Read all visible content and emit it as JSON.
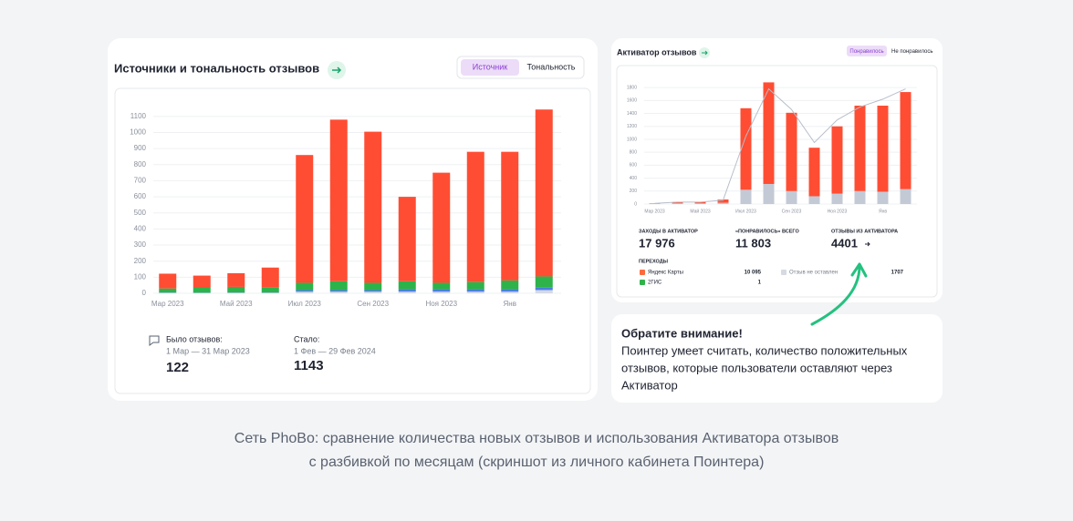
{
  "left_card": {
    "title": "Источники и тональность отзывов",
    "tabs": [
      "Источник",
      "Тональность"
    ],
    "before": {
      "label": "Было отзывов:",
      "period": "1 Мар — 31 Мар 2023",
      "value": "122"
    },
    "after": {
      "label": "Стало:",
      "period": "1 Фев — 29 Фев 2024",
      "value": "1143"
    }
  },
  "right_card": {
    "title": "Активатор отзывов",
    "tabs": [
      "Понравилось",
      "Не понравилось"
    ],
    "stats": [
      {
        "label": "ЗАХОДЫ В АКТИВАТОР",
        "value": "17 976"
      },
      {
        "label": "«ПОНРАВИЛОСЬ» ВСЕГО",
        "value": "11 803"
      },
      {
        "label": "ОТЗЫВЫ ИЗ АКТИВАТОРА",
        "value": "4401"
      }
    ],
    "transitions_title": "ПЕРЕХОДЫ",
    "transitions": [
      {
        "label": "Яндекс Карты",
        "value": "10 095"
      },
      {
        "label": "2ГИС",
        "value": "1"
      },
      {
        "label": "Отзыв не оставлен",
        "value": "1707"
      }
    ]
  },
  "note": {
    "title": "Обратите внимание!",
    "lines": [
      "Поинтер умеет считать, количество положительных",
      "отзывов, которые пользователи оставляют через",
      "Активатор"
    ]
  },
  "caption": [
    "Сеть PhoBo: сравнение количества новых отзывов и использования Активатора отзывов",
    "с разбивкой по месяцам (скриншот из личного кабинета Поинтера)"
  ],
  "chart_data": [
    {
      "type": "bar",
      "stacked": true,
      "categories": [
        "Мар 2023",
        null,
        "Май 2023",
        null,
        "Июл 2023",
        null,
        "Сен 2023",
        null,
        "Ноя 2023",
        null,
        "Янв",
        null
      ],
      "series": [
        {
          "color": "#d5dae3",
          "values": [
            3,
            2,
            3,
            3,
            10,
            10,
            10,
            10,
            10,
            10,
            10,
            20
          ]
        },
        {
          "color": "#4a7fe0",
          "values": [
            2,
            2,
            2,
            2,
            10,
            10,
            10,
            15,
            15,
            15,
            15,
            15
          ]
        },
        {
          "color": "#2db34a",
          "values": [
            25,
            30,
            35,
            30,
            45,
            55,
            45,
            50,
            40,
            45,
            55,
            70
          ]
        },
        {
          "color": "#ff4d33",
          "values": [
            92,
            76,
            85,
            125,
            795,
            1005,
            940,
            525,
            685,
            810,
            800,
            1038
          ]
        }
      ],
      "ylim": [
        0,
        1150
      ],
      "yticks": [
        0,
        100,
        200,
        300,
        400,
        500,
        600,
        700,
        800,
        900,
        1000,
        1100
      ],
      "grid": true
    },
    {
      "type": "bar",
      "stacked": true,
      "categories": [
        "Мар 2023",
        null,
        "Май 2023",
        null,
        "Июл 2023",
        null,
        "Сен 2023",
        null,
        "Ноя 2023",
        null,
        "Янв",
        null
      ],
      "series": [
        {
          "color": "#c3cad6",
          "values": [
            5,
            10,
            10,
            20,
            220,
            310,
            200,
            120,
            160,
            200,
            190,
            230
          ]
        },
        {
          "color": "#ff4d33",
          "values": [
            5,
            20,
            20,
            50,
            1260,
            1570,
            1210,
            750,
            1040,
            1320,
            1330,
            1500
          ]
        },
        {
          "type": "line",
          "color": "#b8bec9",
          "values": [
            10,
            30,
            30,
            60,
            1050,
            1780,
            1460,
            950,
            1300,
            1500,
            1620,
            1780
          ]
        }
      ],
      "ylim": [
        0,
        1900
      ],
      "yticks": [
        0,
        200,
        400,
        600,
        800,
        1000,
        1200,
        1400,
        1600,
        1800
      ],
      "grid": true
    }
  ]
}
